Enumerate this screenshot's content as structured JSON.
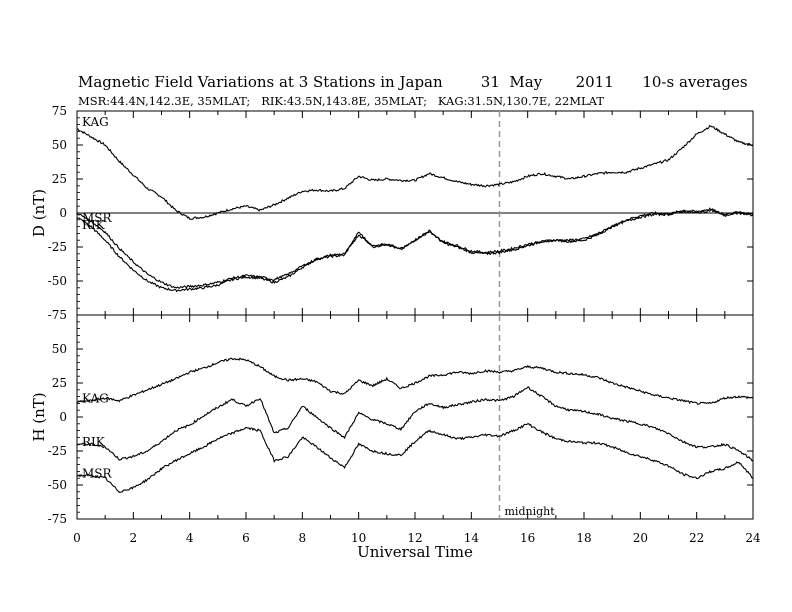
{
  "header": {
    "title": "Magnetic Field Variations at 3 Stations in Japan        31  May       2011      10-s averages",
    "subtitle": "MSR:44.4N,142.3E, 35MLAT;   RIK:43.5N,143.8E, 35MLAT;   KAG:31.5N,130.7E, 22MLAT"
  },
  "chart_data": [
    {
      "type": "line",
      "ylabel": "D (nT)",
      "xlim": [
        0,
        24
      ],
      "ylim": [
        -75,
        75
      ],
      "yticks": [
        75,
        50,
        25,
        0,
        -25,
        -50,
        -75
      ],
      "zero_line": true,
      "series": [
        {
          "name": "KAG",
          "x": [
            0,
            0.5,
            1,
            1.5,
            2,
            2.5,
            3,
            3.5,
            4,
            4.5,
            5,
            5.5,
            6,
            6.5,
            7,
            7.5,
            8,
            8.5,
            9,
            9.5,
            10,
            10.5,
            11,
            11.5,
            12,
            12.5,
            13,
            13.5,
            14,
            14.5,
            15,
            15.5,
            16,
            16.5,
            17,
            17.5,
            18,
            18.5,
            19,
            19.5,
            20,
            20.5,
            21,
            21.5,
            22,
            22.5,
            23,
            23.5,
            24
          ],
          "y": [
            62,
            56,
            50,
            38,
            28,
            18,
            12,
            2,
            -4,
            -3,
            0,
            3,
            5,
            2,
            6,
            11,
            16,
            17,
            16,
            18,
            27,
            24,
            25,
            24,
            24,
            29,
            26,
            23,
            21,
            20,
            21,
            23,
            27,
            29,
            27,
            25,
            27,
            29,
            30,
            30,
            33,
            36,
            39,
            48,
            58,
            64,
            58,
            52,
            50
          ]
        },
        {
          "name": "RIK",
          "x": [
            0,
            0.5,
            1,
            1.5,
            2,
            2.5,
            3,
            3.5,
            4,
            4.5,
            5,
            5.5,
            6,
            6.5,
            7,
            7.5,
            8,
            8.5,
            9,
            9.5,
            10,
            10.5,
            11,
            11.5,
            12,
            12.5,
            13,
            13.5,
            14,
            14.5,
            15,
            15.5,
            16,
            16.5,
            17,
            17.5,
            18,
            18.5,
            19,
            19.5,
            20,
            20.5,
            21,
            21.5,
            22,
            22.5,
            23,
            23.5,
            24
          ],
          "y": [
            -3,
            -10,
            -20,
            -32,
            -42,
            -50,
            -55,
            -57,
            -56,
            -55,
            -53,
            -49,
            -47,
            -48,
            -51,
            -47,
            -40,
            -34,
            -32,
            -31,
            -14,
            -25,
            -23,
            -27,
            -20,
            -13,
            -22,
            -25,
            -29,
            -30,
            -29,
            -27,
            -24,
            -21,
            -20,
            -21,
            -20,
            -16,
            -10,
            -5,
            -2,
            0,
            -1,
            2,
            1,
            3,
            -2,
            1,
            -2
          ]
        },
        {
          "name": "MSR",
          "x": [
            0,
            0.5,
            1,
            1.5,
            2,
            2.5,
            3,
            3.5,
            4,
            4.5,
            5,
            5.5,
            6,
            6.5,
            7,
            7.5,
            8,
            8.5,
            9,
            9.5,
            10,
            10.5,
            11,
            11.5,
            12,
            12.5,
            13,
            13.5,
            14,
            14.5,
            15,
            15.5,
            16,
            16.5,
            17,
            17.5,
            18,
            18.5,
            19,
            19.5,
            20,
            20.5,
            21,
            21.5,
            22,
            22.5,
            23,
            23.5,
            24
          ],
          "y": [
            0,
            -6,
            -14,
            -26,
            -36,
            -45,
            -51,
            -55,
            -54,
            -53,
            -51,
            -48,
            -46,
            -47,
            -49,
            -45,
            -39,
            -34,
            -31,
            -30,
            -16,
            -24,
            -23,
            -26,
            -20,
            -14,
            -21,
            -24,
            -28,
            -29,
            -28,
            -26,
            -23,
            -21,
            -20,
            -20,
            -19,
            -15,
            -10,
            -6,
            -3,
            -1,
            -1,
            1,
            0,
            2,
            -1,
            0,
            -1
          ]
        }
      ],
      "labels": [
        "KAG",
        "MSR",
        "RIK"
      ]
    },
    {
      "type": "line",
      "ylabel": "H (nT)",
      "xlabel": "Universal Time",
      "xlim": [
        0,
        24
      ],
      "ylim": [
        -75,
        75
      ],
      "yticks": [
        50,
        25,
        0,
        -25,
        -50,
        -75
      ],
      "xticks": [
        0,
        2,
        4,
        6,
        8,
        10,
        12,
        14,
        16,
        18,
        20,
        22,
        24
      ],
      "series": [
        {
          "name": "KAG",
          "x": [
            0,
            0.5,
            1,
            1.5,
            2,
            2.5,
            3,
            3.5,
            4,
            4.5,
            5,
            5.5,
            6,
            6.5,
            7,
            7.5,
            8,
            8.5,
            9,
            9.5,
            10,
            10.5,
            11,
            11.5,
            12,
            12.5,
            13,
            13.5,
            14,
            14.5,
            15,
            15.5,
            16,
            16.5,
            17,
            17.5,
            18,
            18.5,
            19,
            19.5,
            20,
            20.5,
            21,
            21.5,
            22,
            22.5,
            23,
            23.5,
            24
          ],
          "y": [
            11,
            12,
            14,
            12,
            16,
            20,
            24,
            28,
            33,
            36,
            40,
            43,
            42,
            37,
            30,
            27,
            28,
            26,
            19,
            17,
            27,
            23,
            28,
            21,
            25,
            30,
            31,
            33,
            32,
            34,
            33,
            34,
            37,
            36,
            33,
            32,
            31,
            29,
            25,
            22,
            19,
            16,
            14,
            12,
            10,
            10,
            14,
            15,
            14
          ]
        },
        {
          "name": "RIK",
          "x": [
            0,
            0.5,
            1,
            1.5,
            2,
            2.5,
            3,
            3.5,
            4,
            4.5,
            5,
            5.5,
            6,
            6.5,
            7,
            7.5,
            8,
            8.5,
            9,
            9.5,
            10,
            10.5,
            11,
            11.5,
            12,
            12.5,
            13,
            13.5,
            14,
            14.5,
            15,
            15.5,
            16,
            16.5,
            17,
            17.5,
            18,
            18.5,
            19,
            19.5,
            20,
            20.5,
            21,
            21.5,
            22,
            22.5,
            23,
            23.5,
            24
          ],
          "y": [
            -20,
            -20,
            -22,
            -31,
            -29,
            -25,
            -18,
            -10,
            -6,
            1,
            7,
            13,
            8,
            14,
            -12,
            -8,
            8,
            0,
            -8,
            -15,
            3,
            -2,
            -5,
            -9,
            4,
            10,
            7,
            9,
            11,
            13,
            12,
            15,
            22,
            15,
            8,
            5,
            4,
            2,
            -1,
            -3,
            -5,
            -8,
            -12,
            -18,
            -22,
            -22,
            -20,
            -25,
            -32
          ]
        },
        {
          "name": "MSR",
          "x": [
            0,
            0.5,
            1,
            1.5,
            2,
            2.5,
            3,
            3.5,
            4,
            4.5,
            5,
            5.5,
            6,
            6.5,
            7,
            7.5,
            8,
            8.5,
            9,
            9.5,
            10,
            10.5,
            11,
            11.5,
            12,
            12.5,
            13,
            13.5,
            14,
            14.5,
            15,
            15.5,
            16,
            16.5,
            17,
            17.5,
            18,
            18.5,
            19,
            19.5,
            20,
            20.5,
            21,
            21.5,
            22,
            22.5,
            23,
            23.5,
            24
          ],
          "y": [
            -43,
            -43,
            -45,
            -55,
            -52,
            -46,
            -38,
            -32,
            -27,
            -22,
            -16,
            -12,
            -8,
            -10,
            -32,
            -29,
            -15,
            -22,
            -30,
            -37,
            -20,
            -25,
            -27,
            -28,
            -18,
            -10,
            -13,
            -16,
            -15,
            -13,
            -14,
            -10,
            -5,
            -11,
            -16,
            -18,
            -19,
            -19,
            -22,
            -26,
            -29,
            -32,
            -36,
            -42,
            -45,
            -40,
            -38,
            -33,
            -45
          ]
        }
      ],
      "labels": [
        "KAG",
        "RIK",
        "MSR"
      ],
      "annotation": {
        "x": 15,
        "text": "midnight"
      }
    }
  ]
}
